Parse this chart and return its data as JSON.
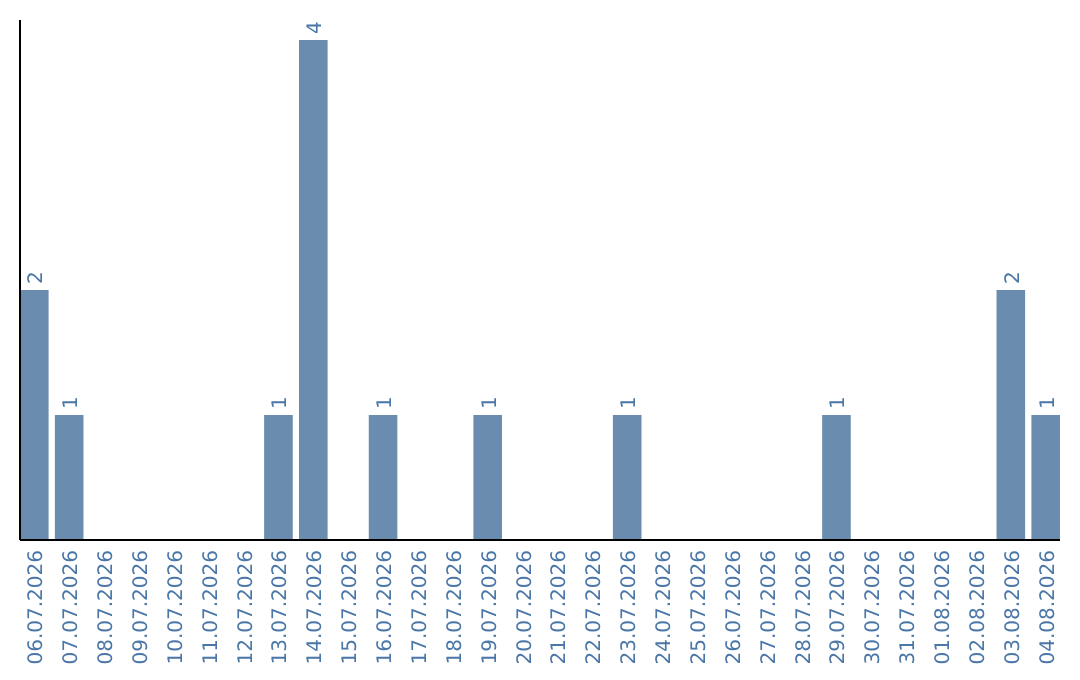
{
  "chart_data": {
    "type": "bar",
    "categories": [
      "06.07.2026",
      "07.07.2026",
      "08.07.2026",
      "09.07.2026",
      "10.07.2026",
      "11.07.2026",
      "12.07.2026",
      "13.07.2026",
      "14.07.2026",
      "15.07.2026",
      "16.07.2026",
      "17.07.2026",
      "18.07.2026",
      "19.07.2026",
      "20.07.2026",
      "21.07.2026",
      "22.07.2026",
      "23.07.2026",
      "24.07.2026",
      "25.07.2026",
      "26.07.2026",
      "27.07.2026",
      "28.07.2026",
      "29.07.2026",
      "30.07.2026",
      "31.07.2026",
      "01.08.2026",
      "02.08.2026",
      "03.08.2026",
      "04.08.2026"
    ],
    "values": [
      2,
      1,
      0,
      0,
      0,
      0,
      0,
      1,
      4,
      0,
      1,
      0,
      0,
      1,
      0,
      0,
      0,
      1,
      0,
      0,
      0,
      0,
      0,
      1,
      0,
      0,
      0,
      0,
      2,
      1
    ],
    "value_labels": [
      "2",
      "1",
      null,
      null,
      null,
      null,
      null,
      "1",
      "4",
      null,
      "1",
      null,
      null,
      "1",
      null,
      null,
      null,
      "1",
      null,
      null,
      null,
      null,
      null,
      "1",
      null,
      null,
      null,
      null,
      "2",
      "1"
    ],
    "color": "#6a8caf",
    "ylim": [
      0,
      4.16
    ],
    "tick_labels": "x"
  }
}
